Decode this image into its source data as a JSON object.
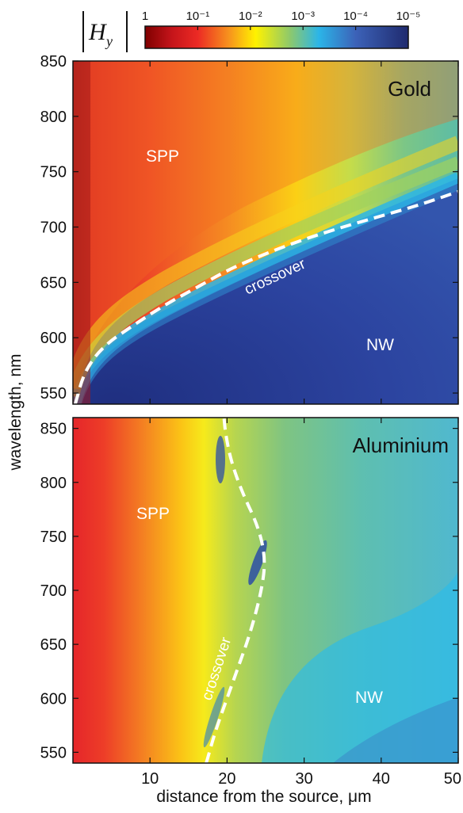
{
  "chart_data": [
    {
      "type": "heatmap",
      "title": "Gold",
      "ylabel": "wavelength, nm",
      "xlabel": "",
      "xlim": [
        0,
        50
      ],
      "ylim": [
        540,
        850
      ],
      "yticks": [
        "550",
        "600",
        "650",
        "700",
        "750",
        "800",
        "850"
      ],
      "colorscale": "jet, logarithmic |Hy| from 1 to 1e-5",
      "regions": [
        {
          "label": "SPP",
          "x": 10,
          "y": 777
        },
        {
          "label": "NW",
          "x": 40,
          "y": 598
        }
      ],
      "crossover": {
        "label": "crossover",
        "style": "dashed white",
        "points": [
          [
            0.3,
            540
          ],
          [
            1.5,
            570
          ],
          [
            4,
            593
          ],
          [
            8,
            612
          ],
          [
            12,
            630
          ],
          [
            16,
            645
          ],
          [
            20,
            661
          ],
          [
            25,
            676
          ],
          [
            30,
            689
          ],
          [
            35,
            700
          ],
          [
            40,
            710
          ],
          [
            45,
            720
          ],
          [
            50,
            732
          ]
        ]
      }
    },
    {
      "type": "heatmap",
      "title": "Aluminium",
      "ylabel": "wavelength, nm",
      "xlabel": "distance from the source, μm",
      "xlim": [
        0,
        50
      ],
      "ylim": [
        540,
        860
      ],
      "xticks": [
        "10",
        "20",
        "30",
        "40",
        "50"
      ],
      "yticks": [
        "550",
        "600",
        "650",
        "700",
        "750",
        "800",
        "850"
      ],
      "colorscale": "jet, logarithmic |Hy| from 1 to 1e-5",
      "regions": [
        {
          "label": "SPP",
          "x": 10,
          "y": 756
        },
        {
          "label": "NW",
          "x": 37,
          "y": 607
        }
      ],
      "crossover": {
        "label": "crossover",
        "style": "dashed white",
        "points": [
          [
            17.3,
            540
          ],
          [
            18.5,
            570
          ],
          [
            20,
            600
          ],
          [
            21.5,
            630
          ],
          [
            23,
            660
          ],
          [
            24.5,
            700
          ],
          [
            25,
            730
          ],
          [
            24,
            760
          ],
          [
            22,
            790
          ],
          [
            20.5,
            820
          ],
          [
            19.8,
            845
          ],
          [
            19.6,
            860
          ]
        ]
      }
    }
  ],
  "colorbar": {
    "symbol": "H",
    "subscript": "y",
    "ticks": [
      "1",
      "10⁻¹",
      "10⁻²",
      "10⁻³",
      "10⁻⁴",
      "10⁻⁵"
    ]
  },
  "colors": {
    "dark_red": "#7f0000",
    "red": "#e41a1c",
    "orange": "#f7941d",
    "yellow": "#fff200",
    "green": "#7fc97f",
    "cyan": "#29b6e8",
    "blue": "#2b3f9a",
    "dark_blue": "#1f2a6e"
  }
}
